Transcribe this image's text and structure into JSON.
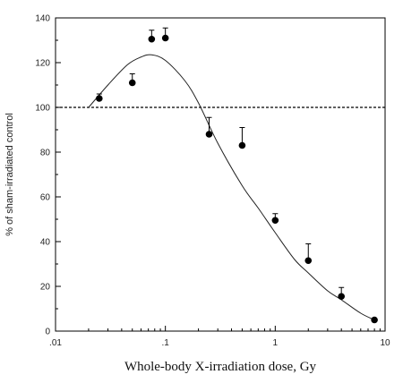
{
  "chart_data": {
    "type": "scatter",
    "title": "",
    "xlabel": "Whole-body X-irradiation dose, Gy",
    "ylabel": "% of sham-irradiated control",
    "x_scale": "log",
    "xlim": [
      0.01,
      10
    ],
    "ylim": [
      0,
      140
    ],
    "x_ticks": [
      0.01,
      0.1,
      1,
      10
    ],
    "x_tick_labels": [
      ".01",
      ".1",
      "1",
      "10"
    ],
    "y_ticks": [
      0,
      20,
      40,
      60,
      80,
      100,
      120,
      140
    ],
    "y_tick_labels": [
      "0",
      "20",
      "40",
      "60",
      "80",
      "100",
      "120",
      "140"
    ],
    "grid": false,
    "reference_line": {
      "y": 100,
      "style": "dashed"
    },
    "series": [
      {
        "type": "scatter",
        "x": [
          0.025,
          0.05,
          0.075,
          0.1,
          0.25,
          0.5,
          1,
          2,
          4,
          8
        ],
        "y": [
          104,
          111,
          130.5,
          131,
          88,
          83,
          49.5,
          31.5,
          15.5,
          5
        ],
        "error_upper": [
          2,
          4,
          4,
          4.5,
          7.5,
          8,
          3,
          7.5,
          4,
          0
        ]
      },
      {
        "type": "line",
        "style": "smooth-fit",
        "x": [
          0.02,
          0.03,
          0.045,
          0.06,
          0.075,
          0.1,
          0.15,
          0.2,
          0.3,
          0.5,
          0.7,
          1,
          1.5,
          2,
          3,
          4,
          6,
          8
        ],
        "y": [
          100,
          110,
          119,
          122.5,
          123.5,
          121,
          112,
          102,
          84,
          65,
          55,
          44,
          32,
          26,
          18,
          14,
          8,
          5
        ]
      }
    ]
  }
}
